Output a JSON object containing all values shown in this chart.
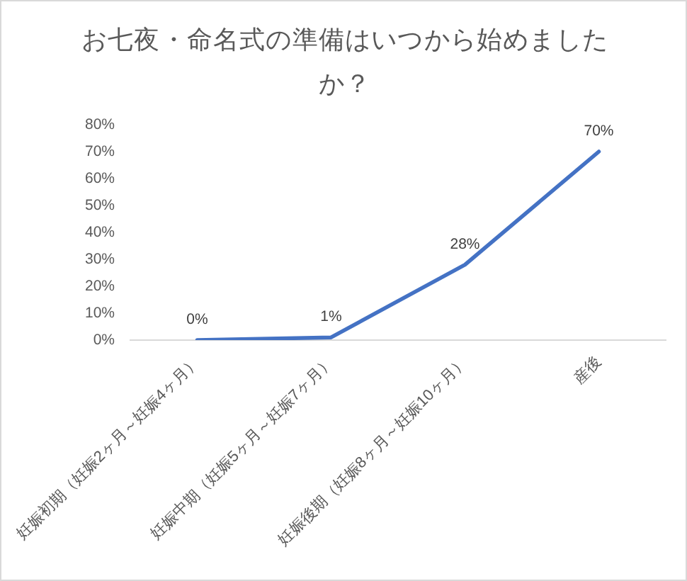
{
  "chart_data": {
    "type": "line",
    "title": "お七夜・命名式の準備はいつから始めましたか？",
    "categories": [
      "妊娠初期（妊娠2ヶ月～妊娠4ヶ月）",
      "妊娠中期（妊娠5ヶ月～妊娠7ヶ月）",
      "妊娠後期（妊娠8ヶ月～妊娠10ヶ月）",
      "産後"
    ],
    "values": [
      0,
      1,
      28,
      70
    ],
    "value_labels": [
      "0%",
      "1%",
      "28%",
      "70%"
    ],
    "color": "#4472c4",
    "marker": "none",
    "ylim": [
      0,
      80
    ],
    "yticks": [
      {
        "value": 0,
        "label": "0%"
      },
      {
        "value": 10,
        "label": "10%"
      },
      {
        "value": 20,
        "label": "20%"
      },
      {
        "value": 30,
        "label": "30%"
      },
      {
        "value": 40,
        "label": "40%"
      },
      {
        "value": 50,
        "label": "50%"
      },
      {
        "value": 60,
        "label": "60%"
      },
      {
        "value": 70,
        "label": "70%"
      },
      {
        "value": 80,
        "label": "80%"
      }
    ],
    "grid": false
  }
}
